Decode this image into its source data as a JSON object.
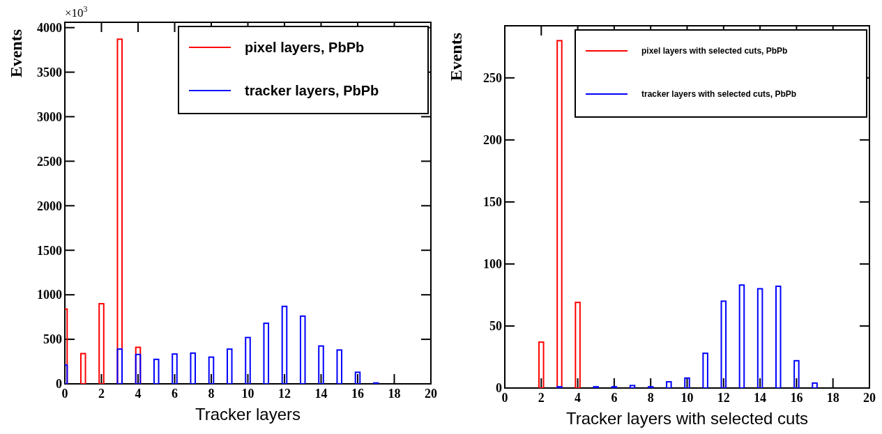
{
  "chart_data": [
    {
      "type": "bar",
      "xlabel": "Tracker layers",
      "ylabel": "Events",
      "annotations": [
        "×10$^{3}$"
      ],
      "xlim": [
        0,
        20
      ],
      "xticks": [
        0,
        2,
        4,
        6,
        8,
        10,
        12,
        14,
        16,
        18,
        20
      ],
      "ylim": [
        0,
        4060
      ],
      "yticks": [
        0,
        500,
        1000,
        1500,
        2000,
        2500,
        3000,
        3500,
        4000
      ],
      "legend": "top right",
      "series": [
        {
          "name": "pixel layers, PbPb",
          "color": "#ff0000",
          "x": [
            0,
            1,
            2,
            3,
            4
          ],
          "values": [
            840,
            340,
            900,
            3870,
            410
          ]
        },
        {
          "name": "tracker layers, PbPb",
          "color": "#0000ff",
          "x": [
            0,
            3,
            4,
            5,
            6,
            7,
            8,
            9,
            10,
            11,
            12,
            13,
            14,
            15,
            16,
            17
          ],
          "values": [
            210,
            390,
            330,
            275,
            335,
            345,
            300,
            390,
            520,
            680,
            870,
            760,
            425,
            380,
            130,
            10
          ]
        }
      ]
    },
    {
      "type": "bar",
      "xlabel": "Tracker layers with selected cuts",
      "ylabel": "Events",
      "xlim": [
        0,
        20
      ],
      "xticks": [
        0,
        2,
        4,
        6,
        8,
        10,
        12,
        14,
        16,
        18,
        20
      ],
      "ylim": [
        0,
        292
      ],
      "yticks": [
        0,
        50,
        100,
        150,
        200,
        250
      ],
      "legend": "top right",
      "series": [
        {
          "name": "pixel layers with selected cuts, PbPb",
          "color": "#ff0000",
          "x": [
            2,
            3,
            4
          ],
          "values": [
            37,
            280,
            69
          ]
        },
        {
          "name": "tracker layers with selected cuts, PbPb",
          "color": "#0000ff",
          "x": [
            3,
            5,
            6,
            7,
            8,
            9,
            10,
            11,
            12,
            13,
            14,
            15,
            16,
            17
          ],
          "values": [
            1,
            1,
            1,
            2,
            1,
            5,
            8,
            28,
            70,
            83,
            80,
            82,
            22,
            4
          ]
        }
      ]
    }
  ]
}
